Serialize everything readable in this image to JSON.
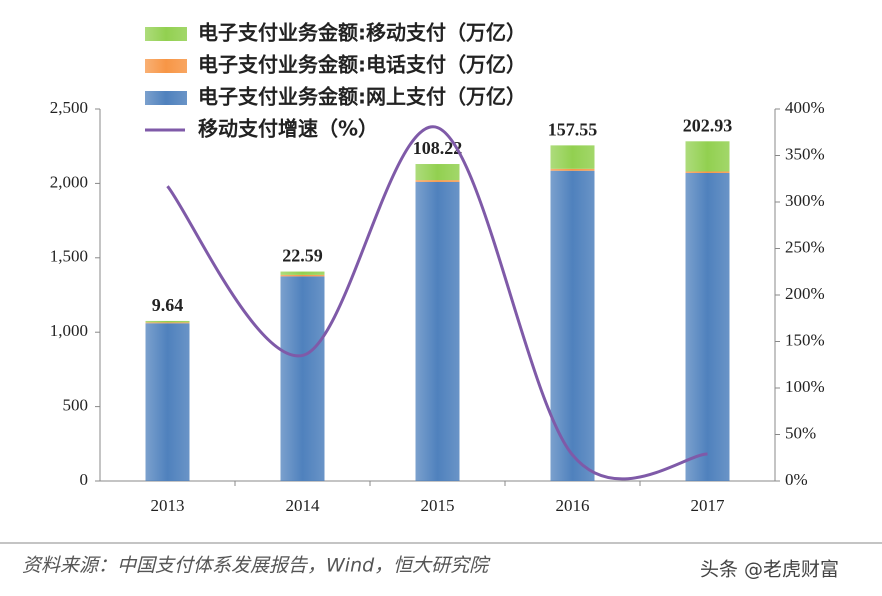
{
  "chart_data": {
    "type": "bar",
    "categories": [
      "2013",
      "2014",
      "2015",
      "2016",
      "2017"
    ],
    "series": [
      {
        "name": "电子支付业务金额:移动支付（万亿）",
        "color": "#92d050",
        "values": [
          9.64,
          22.59,
          108.22,
          157.55,
          202.93
        ]
      },
      {
        "name": "电子支付业务金额:电话支付（万亿）",
        "color": "#f79646",
        "values": [
          6,
          10,
          12,
          13,
          10
        ]
      },
      {
        "name": "电子支付业务金额:网上支付（万亿）",
        "color": "#4f81bd",
        "values": [
          1060,
          1375,
          2010,
          2085,
          2070
        ]
      },
      {
        "name": "移动支付增速（%）",
        "color": "#7f5aa8",
        "type": "line",
        "axis": "y2",
        "values": [
          317,
          135,
          380,
          28,
          29
        ]
      }
    ],
    "ylim": [
      0,
      2500
    ],
    "yticks": [
      0,
      500,
      {
        "value": 1000,
        "label": "1,000"
      },
      {
        "value": 1500,
        "label": "1,500"
      },
      {
        "value": 2000,
        "label": "2,000"
      },
      {
        "value": 2500,
        "label": "2,500"
      }
    ],
    "y2lim": [
      0,
      400
    ],
    "y2ticks": [
      {
        "value": 0,
        "label": "0%"
      },
      {
        "value": 50,
        "label": "50%"
      },
      {
        "value": 100,
        "label": "100%"
      },
      {
        "value": 150,
        "label": "150%"
      },
      {
        "value": 200,
        "label": "200%"
      },
      {
        "value": 250,
        "label": "250%"
      },
      {
        "value": 300,
        "label": "300%"
      },
      {
        "value": 350,
        "label": "350%"
      },
      {
        "value": 400,
        "label": "400%"
      }
    ],
    "stacked": true,
    "source": "资料来源：中国支付体系发展报告，Wind，恒大研究院",
    "watermark": "头条 @老虎财富"
  }
}
